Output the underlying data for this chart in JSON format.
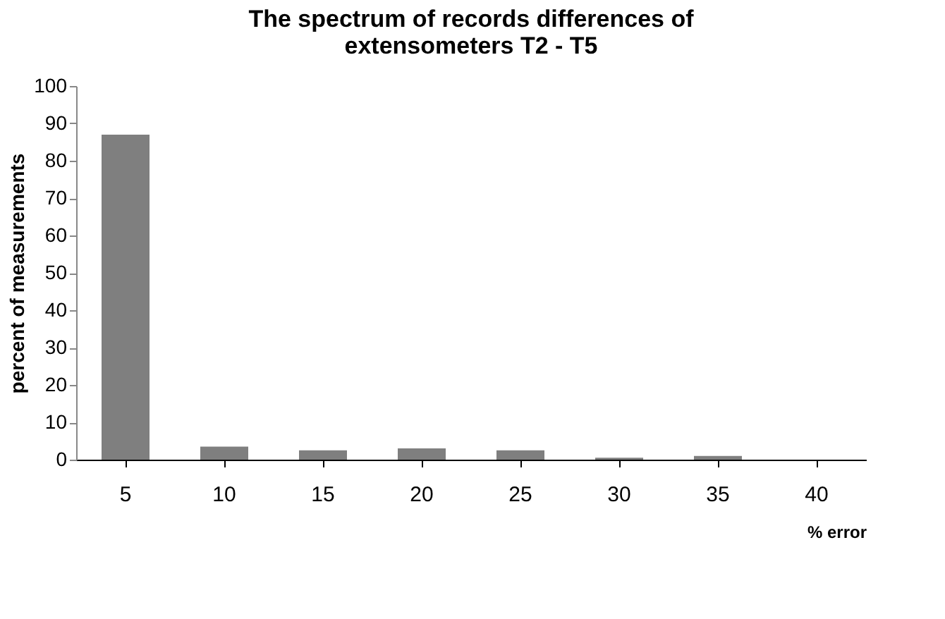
{
  "chart_data": {
    "type": "bar",
    "title": [
      "The spectrum of records differences of",
      "extensometers  T2 - T5"
    ],
    "xlabel": "% error",
    "ylabel": "percent of measurements",
    "categories": [
      "5",
      "10",
      "15",
      "20",
      "25",
      "30",
      "35",
      "40"
    ],
    "values": [
      87,
      3.5,
      2.5,
      3,
      2.5,
      0.5,
      1,
      0
    ],
    "color": "#7f7f7f",
    "ylim": [
      0,
      100
    ],
    "yticks": [
      0,
      10,
      20,
      30,
      40,
      50,
      60,
      70,
      80,
      90,
      100
    ],
    "grid": false
  }
}
